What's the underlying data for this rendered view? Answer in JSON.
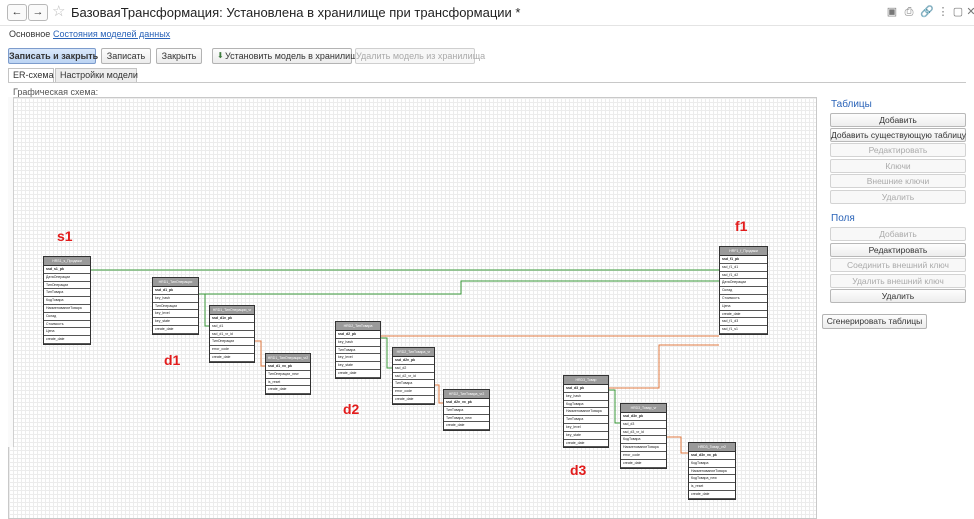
{
  "window": {
    "title": "БазоваяТрансформация: Установлена в хранилище при трансформации *",
    "back_icon": "←",
    "forward_icon": "→",
    "star_icon": "☆"
  },
  "nav": {
    "main_label": "Основное",
    "link_label": "Состояния моделей данных"
  },
  "toolbar": {
    "save_close_label": "Записать и закрыть",
    "save_label": "Записать",
    "close_label": "Закрыть",
    "install_label": "Установить модель в хранилище",
    "remove_label": "Удалить модель из хранилища"
  },
  "tabs": {
    "er_label": "ER-схема",
    "settings_label": "Настройки модели"
  },
  "schema": {
    "label": "Графическая схема:",
    "markers": {
      "s1": "s1",
      "d1": "d1",
      "d2": "d2",
      "d3": "d3",
      "f1": "f1"
    },
    "entities": {
      "s1": {
        "title": "HRS1_s_Продажи",
        "fields": [
          "ssd_s1_pk",
          "ДатаОперации",
          "ТипОперации",
          "ТипТовара",
          "КодТовара",
          "НаименованиеТовара",
          "Склад",
          "Стоимость",
          "Цена",
          "create_date"
        ]
      },
      "d1": {
        "title": "HRD1_ТипОперации",
        "fields": [
          "ssd_d1_pk",
          "key_hash",
          "ТипОперации",
          "key_level",
          "key_state",
          "create_date"
        ]
      },
      "d1b": {
        "title": "HRD1_ТипОперации_vr",
        "fields": [
          "ssd_d1v_pk",
          "ssd_d1",
          "ssd_d1_vr_id",
          "ТипОперации",
          "error_code",
          "create_date"
        ]
      },
      "d1c": {
        "title": "HRD1_ТипОперации_vr2",
        "fields": [
          "ssd_d1_vx_pk",
          "ТипОперации_new",
          "is_reset",
          "create_date"
        ]
      },
      "d2": {
        "title": "HRD2_ТипТовара",
        "fields": [
          "ssd_d2_pk",
          "key_hash",
          "ТипТовара",
          "key_level",
          "key_state",
          "create_date"
        ]
      },
      "d2b": {
        "title": "HRD2_ТипТовара_vr",
        "fields": [
          "ssd_d2v_pk",
          "ssd_d2",
          "ssd_d2_vr_id",
          "ТипТовара",
          "error_code",
          "create_date"
        ]
      },
      "d2c": {
        "title": "HRD2_ТипТовара_vr2",
        "fields": [
          "ssd_d2v_vx_pk",
          "ТипТовара",
          "ТипТовара_new",
          "create_date"
        ]
      },
      "d3": {
        "title": "HRD3_Товар",
        "fields": [
          "ssd_d3_pk",
          "key_hash",
          "КодТовара",
          "НаименованиеТовара",
          "ТипТовара",
          "key_level",
          "key_state",
          "create_date"
        ]
      },
      "d3b": {
        "title": "HRD3_Товар_vr",
        "fields": [
          "ssd_d3v_pk",
          "ssd_d3",
          "ssd_d3_vr_id",
          "КодТовара",
          "НаименованиеТовара",
          "error_code",
          "create_date"
        ]
      },
      "d3c": {
        "title": "HRD3_Товар_vr2",
        "fields": [
          "ssd_d3v_vx_pk",
          "КодТовара",
          "НаименованиеТовара",
          "КодТовара_new",
          "is_reset",
          "create_date"
        ]
      },
      "f1": {
        "title": "HRF1_f_Продажи",
        "fields": [
          "ssd_f1_pk",
          "ssd_f1_d1",
          "ssd_f1_d2",
          "ДатаОперации",
          "Склад",
          "Стоимость",
          "Цена",
          "create_date",
          "ssd_f1_d3",
          "ssd_f1_s1"
        ]
      }
    }
  },
  "tables_panel": {
    "header": "Таблицы",
    "add": "Добавить",
    "add_existing": "Добавить существующую таблицу",
    "edit": "Редактировать",
    "keys": "Ключи",
    "foreign_keys": "Внешние ключи",
    "delete": "Удалить"
  },
  "fields_panel": {
    "header": "Поля",
    "add": "Добавить",
    "edit": "Редактировать",
    "connect_fk": "Соединить внешний ключ",
    "delete_fk": "Удалить внешний ключ",
    "delete": "Удалить"
  },
  "generate_label": "Сгенерировать таблицы",
  "colors": {
    "accent": "#2a63b8",
    "marker": "#e21c1c",
    "link_green": "#3a9a3a",
    "link_orange": "#e07a40"
  }
}
